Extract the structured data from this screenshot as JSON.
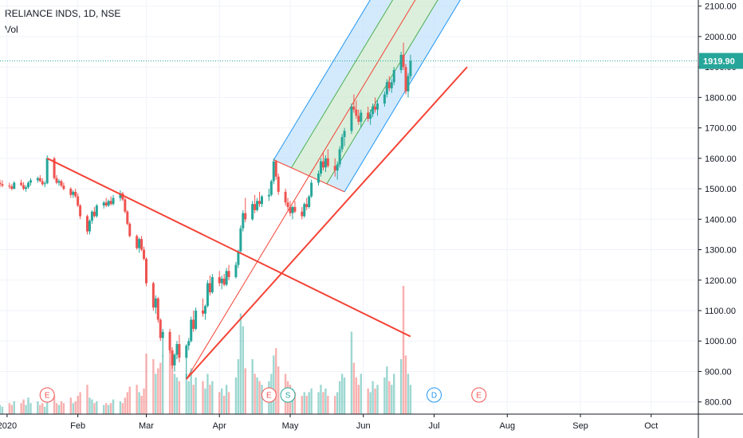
{
  "header": {
    "title": "RELIANCE INDS, 1D, NSE",
    "volume_label": "Vol"
  },
  "colors": {
    "up": "#26a69a",
    "down": "#ef5350",
    "trendline": "#f44336",
    "channel_fill_blue": "#bbdefb",
    "channel_fill_green": "#c8e6c9",
    "channel_border_blue": "#2196f3",
    "channel_border_green": "#4caf50",
    "last_price_bg": "#26a69a",
    "grid": "#f0f3fa"
  },
  "chart_data": {
    "type": "candlestick",
    "title": "RELIANCE INDS, 1D, NSE",
    "xlabel": "",
    "ylabel": "",
    "ylim": [
      760,
      2120
    ],
    "y_ticks": [
      "800.00",
      "900.00",
      "1000.00",
      "1100.00",
      "1200.00",
      "1300.00",
      "1400.00",
      "1500.00",
      "1600.00",
      "1700.00",
      "1800.00",
      "1900.00",
      "2000.00",
      "2100.00"
    ],
    "x_ticks": [
      "2020",
      "Feb",
      "Mar",
      "Apr",
      "May",
      "Jun",
      "Jul",
      "Aug",
      "Sep",
      "Oct"
    ],
    "x_tick_days": [
      0,
      30,
      59,
      90,
      120,
      151,
      181,
      212,
      243,
      273
    ],
    "x_range_days": [
      -3,
      293
    ],
    "last_price": "1919.90",
    "last_price_value": 1919.9,
    "candles": [
      [
        -3,
        1520,
        1530,
        1505,
        1515
      ],
      [
        -2,
        1515,
        1528,
        1505,
        1510
      ],
      [
        1,
        1510,
        1520,
        1500,
        1508
      ],
      [
        2,
        1508,
        1515,
        1495,
        1500
      ],
      [
        3,
        1500,
        1525,
        1498,
        1520
      ],
      [
        6,
        1520,
        1530,
        1508,
        1512
      ],
      [
        7,
        1512,
        1522,
        1495,
        1500
      ],
      [
        8,
        1500,
        1512,
        1490,
        1505
      ],
      [
        9,
        1505,
        1525,
        1500,
        1520
      ],
      [
        10,
        1520,
        1535,
        1510,
        1528
      ],
      [
        13,
        1528,
        1540,
        1520,
        1535
      ],
      [
        14,
        1535,
        1545,
        1522,
        1525
      ],
      [
        15,
        1525,
        1535,
        1510,
        1515
      ],
      [
        16,
        1515,
        1525,
        1505,
        1518
      ],
      [
        17,
        1518,
        1610,
        1515,
        1600
      ],
      [
        20,
        1600,
        1605,
        1530,
        1535
      ],
      [
        21,
        1535,
        1545,
        1515,
        1520
      ],
      [
        22,
        1520,
        1532,
        1510,
        1525
      ],
      [
        23,
        1525,
        1530,
        1505,
        1510
      ],
      [
        24,
        1510,
        1520,
        1495,
        1500
      ],
      [
        27,
        1500,
        1505,
        1470,
        1480
      ],
      [
        28,
        1480,
        1495,
        1470,
        1490
      ],
      [
        29,
        1490,
        1500,
        1470,
        1475
      ],
      [
        30,
        1475,
        1485,
        1440,
        1445
      ],
      [
        31,
        1445,
        1450,
        1400,
        1410
      ],
      [
        34,
        1410,
        1415,
        1350,
        1360
      ],
      [
        35,
        1360,
        1400,
        1350,
        1395
      ],
      [
        36,
        1395,
        1430,
        1385,
        1425
      ],
      [
        37,
        1425,
        1440,
        1405,
        1410
      ],
      [
        38,
        1410,
        1450,
        1405,
        1445
      ],
      [
        41,
        1445,
        1460,
        1435,
        1455
      ],
      [
        42,
        1455,
        1470,
        1440,
        1445
      ],
      [
        43,
        1445,
        1465,
        1440,
        1460
      ],
      [
        44,
        1460,
        1475,
        1445,
        1450
      ],
      [
        45,
        1450,
        1480,
        1445,
        1470
      ],
      [
        48,
        1470,
        1495,
        1460,
        1485
      ],
      [
        49,
        1485,
        1490,
        1460,
        1465
      ],
      [
        50,
        1465,
        1470,
        1420,
        1425
      ],
      [
        51,
        1425,
        1430,
        1380,
        1385
      ],
      [
        52,
        1385,
        1390,
        1340,
        1345
      ],
      [
        55,
        1345,
        1350,
        1300,
        1305
      ],
      [
        56,
        1305,
        1340,
        1290,
        1335
      ],
      [
        57,
        1335,
        1345,
        1295,
        1300
      ],
      [
        58,
        1300,
        1310,
        1265,
        1270
      ],
      [
        59,
        1270,
        1275,
        1180,
        1190
      ],
      [
        62,
        1190,
        1195,
        1100,
        1110
      ],
      [
        63,
        1110,
        1150,
        1090,
        1140
      ],
      [
        64,
        1140,
        1145,
        1060,
        1070
      ],
      [
        65,
        1070,
        1075,
        1000,
        1010
      ],
      [
        66,
        1010,
        1040,
        950,
        1030
      ],
      [
        69,
        1030,
        1040,
        960,
        970
      ],
      [
        70,
        970,
        980,
        910,
        920
      ],
      [
        71,
        920,
        960,
        900,
        955
      ],
      [
        72,
        955,
        1000,
        940,
        990
      ],
      [
        73,
        990,
        1020,
        930,
        945
      ],
      [
        76,
        945,
        990,
        875,
        985
      ],
      [
        77,
        985,
        1010,
        970,
        1000
      ],
      [
        78,
        1000,
        1080,
        995,
        1070
      ],
      [
        79,
        1070,
        1100,
        1030,
        1040
      ],
      [
        80,
        1040,
        1110,
        1035,
        1100
      ],
      [
        83,
        1100,
        1140,
        1080,
        1090
      ],
      [
        84,
        1090,
        1120,
        1070,
        1115
      ],
      [
        85,
        1115,
        1200,
        1110,
        1190
      ],
      [
        86,
        1190,
        1215,
        1150,
        1160
      ],
      [
        87,
        1160,
        1220,
        1155,
        1210
      ],
      [
        90,
        1210,
        1230,
        1180,
        1190
      ],
      [
        91,
        1190,
        1215,
        1170,
        1205
      ],
      [
        92,
        1205,
        1220,
        1180,
        1185
      ],
      [
        93,
        1185,
        1240,
        1180,
        1230
      ],
      [
        94,
        1230,
        1250,
        1200,
        1210
      ],
      [
        97,
        1210,
        1260,
        1205,
        1250
      ],
      [
        98,
        1250,
        1300,
        1240,
        1295
      ],
      [
        99,
        1295,
        1380,
        1290,
        1370
      ],
      [
        100,
        1370,
        1430,
        1360,
        1420
      ],
      [
        101,
        1420,
        1470,
        1390,
        1400
      ],
      [
        104,
        1400,
        1460,
        1395,
        1450
      ],
      [
        105,
        1450,
        1480,
        1420,
        1430
      ],
      [
        106,
        1430,
        1470,
        1425,
        1460
      ],
      [
        107,
        1460,
        1490,
        1440,
        1450
      ],
      [
        108,
        1450,
        1480,
        1440,
        1475
      ],
      [
        111,
        1475,
        1500,
        1460,
        1480
      ],
      [
        112,
        1480,
        1530,
        1475,
        1525
      ],
      [
        113,
        1525,
        1600,
        1515,
        1590
      ],
      [
        114,
        1590,
        1595,
        1530,
        1540
      ],
      [
        115,
        1540,
        1550,
        1480,
        1490
      ],
      [
        118,
        1490,
        1500,
        1445,
        1455
      ],
      [
        119,
        1455,
        1470,
        1430,
        1440
      ],
      [
        120,
        1440,
        1460,
        1410,
        1420
      ],
      [
        121,
        1420,
        1445,
        1400,
        1440
      ],
      [
        122,
        1440,
        1460,
        1420,
        1425
      ],
      [
        125,
        1425,
        1440,
        1400,
        1410
      ],
      [
        126,
        1410,
        1455,
        1405,
        1450
      ],
      [
        127,
        1450,
        1470,
        1430,
        1440
      ],
      [
        128,
        1440,
        1480,
        1435,
        1475
      ],
      [
        129,
        1475,
        1530,
        1470,
        1520
      ],
      [
        132,
        1520,
        1560,
        1510,
        1550
      ],
      [
        133,
        1550,
        1600,
        1540,
        1590
      ],
      [
        134,
        1590,
        1620,
        1560,
        1570
      ],
      [
        135,
        1570,
        1610,
        1555,
        1600
      ],
      [
        136,
        1600,
        1630,
        1570,
        1575
      ],
      [
        139,
        1575,
        1600,
        1540,
        1560
      ],
      [
        140,
        1560,
        1590,
        1530,
        1580
      ],
      [
        141,
        1580,
        1640,
        1570,
        1630
      ],
      [
        142,
        1630,
        1680,
        1620,
        1670
      ],
      [
        143,
        1670,
        1700,
        1640,
        1690
      ],
      [
        146,
        1690,
        1780,
        1680,
        1770
      ],
      [
        147,
        1770,
        1810,
        1750,
        1760
      ],
      [
        148,
        1760,
        1790,
        1730,
        1740
      ],
      [
        149,
        1740,
        1760,
        1710,
        1720
      ],
      [
        150,
        1720,
        1760,
        1700,
        1750
      ],
      [
        153,
        1750,
        1770,
        1720,
        1730
      ],
      [
        154,
        1730,
        1760,
        1710,
        1745
      ],
      [
        155,
        1745,
        1780,
        1735,
        1770
      ],
      [
        156,
        1770,
        1800,
        1750,
        1760
      ],
      [
        157,
        1760,
        1790,
        1740,
        1780
      ],
      [
        160,
        1780,
        1820,
        1770,
        1810
      ],
      [
        161,
        1810,
        1860,
        1800,
        1850
      ],
      [
        162,
        1850,
        1870,
        1820,
        1830
      ],
      [
        163,
        1830,
        1860,
        1815,
        1850
      ],
      [
        164,
        1850,
        1900,
        1840,
        1890
      ],
      [
        167,
        1890,
        1950,
        1880,
        1940
      ],
      [
        168,
        1940,
        1980,
        1890,
        1900
      ],
      [
        169,
        1900,
        1910,
        1810,
        1820
      ],
      [
        170,
        1820,
        1880,
        1800,
        1870
      ],
      [
        171,
        1870,
        1940,
        1860,
        1920
      ]
    ],
    "volumes": [
      [
        -3,
        0.05,
        1
      ],
      [
        -2,
        0.04,
        1
      ],
      [
        1,
        0.06,
        0
      ],
      [
        2,
        0.05,
        0
      ],
      [
        3,
        0.07,
        1
      ],
      [
        6,
        0.06,
        0
      ],
      [
        7,
        0.08,
        0
      ],
      [
        8,
        0.05,
        1
      ],
      [
        9,
        0.09,
        1
      ],
      [
        10,
        0.06,
        1
      ],
      [
        13,
        0.07,
        1
      ],
      [
        14,
        0.05,
        0
      ],
      [
        15,
        0.06,
        0
      ],
      [
        16,
        0.04,
        1
      ],
      [
        17,
        0.14,
        1
      ],
      [
        20,
        0.1,
        0
      ],
      [
        21,
        0.06,
        0
      ],
      [
        22,
        0.05,
        1
      ],
      [
        23,
        0.07,
        0
      ],
      [
        24,
        0.06,
        0
      ],
      [
        27,
        0.09,
        0
      ],
      [
        28,
        0.06,
        1
      ],
      [
        29,
        0.07,
        0
      ],
      [
        30,
        0.1,
        0
      ],
      [
        31,
        0.12,
        0
      ],
      [
        34,
        0.16,
        0
      ],
      [
        35,
        0.09,
        1
      ],
      [
        36,
        0.08,
        1
      ],
      [
        37,
        0.06,
        0
      ],
      [
        38,
        0.07,
        1
      ],
      [
        41,
        0.05,
        1
      ],
      [
        42,
        0.06,
        0
      ],
      [
        43,
        0.05,
        1
      ],
      [
        44,
        0.06,
        0
      ],
      [
        45,
        0.08,
        1
      ],
      [
        48,
        0.07,
        1
      ],
      [
        49,
        0.06,
        0
      ],
      [
        50,
        0.09,
        0
      ],
      [
        51,
        0.12,
        0
      ],
      [
        52,
        0.15,
        0
      ],
      [
        55,
        0.16,
        0
      ],
      [
        56,
        0.12,
        1
      ],
      [
        57,
        0.1,
        0
      ],
      [
        58,
        0.14,
        0
      ],
      [
        59,
        0.33,
        0
      ],
      [
        62,
        0.3,
        0
      ],
      [
        63,
        0.22,
        1
      ],
      [
        64,
        0.25,
        0
      ],
      [
        65,
        0.28,
        0
      ],
      [
        66,
        0.32,
        1
      ],
      [
        69,
        0.35,
        0
      ],
      [
        70,
        0.27,
        0
      ],
      [
        71,
        0.22,
        1
      ],
      [
        72,
        0.2,
        1
      ],
      [
        73,
        0.18,
        0
      ],
      [
        76,
        0.22,
        1
      ],
      [
        77,
        0.18,
        1
      ],
      [
        78,
        0.25,
        1
      ],
      [
        79,
        0.16,
        0
      ],
      [
        80,
        0.2,
        1
      ],
      [
        83,
        0.18,
        0
      ],
      [
        84,
        0.14,
        1
      ],
      [
        85,
        0.22,
        1
      ],
      [
        86,
        0.16,
        0
      ],
      [
        87,
        0.18,
        1
      ],
      [
        90,
        0.12,
        0
      ],
      [
        91,
        0.14,
        1
      ],
      [
        92,
        0.1,
        0
      ],
      [
        93,
        0.16,
        1
      ],
      [
        94,
        0.12,
        0
      ],
      [
        97,
        0.2,
        1
      ],
      [
        98,
        0.3,
        1
      ],
      [
        99,
        0.55,
        1
      ],
      [
        100,
        0.48,
        1
      ],
      [
        101,
        0.25,
        0
      ],
      [
        104,
        0.3,
        1
      ],
      [
        105,
        0.22,
        0
      ],
      [
        106,
        0.2,
        1
      ],
      [
        107,
        0.18,
        0
      ],
      [
        108,
        0.16,
        1
      ],
      [
        111,
        0.18,
        1
      ],
      [
        112,
        0.22,
        1
      ],
      [
        113,
        0.32,
        1
      ],
      [
        114,
        0.36,
        0
      ],
      [
        115,
        0.26,
        0
      ],
      [
        118,
        0.22,
        0
      ],
      [
        119,
        0.18,
        0
      ],
      [
        120,
        0.16,
        0
      ],
      [
        121,
        0.14,
        1
      ],
      [
        122,
        0.12,
        0
      ],
      [
        125,
        0.1,
        0
      ],
      [
        126,
        0.12,
        1
      ],
      [
        127,
        0.1,
        0
      ],
      [
        128,
        0.12,
        1
      ],
      [
        129,
        0.14,
        1
      ],
      [
        132,
        0.12,
        1
      ],
      [
        133,
        0.16,
        1
      ],
      [
        134,
        0.12,
        0
      ],
      [
        135,
        0.14,
        1
      ],
      [
        136,
        0.1,
        0
      ],
      [
        139,
        0.1,
        0
      ],
      [
        140,
        0.12,
        1
      ],
      [
        141,
        0.18,
        1
      ],
      [
        142,
        0.22,
        1
      ],
      [
        143,
        0.2,
        1
      ],
      [
        146,
        0.45,
        1
      ],
      [
        147,
        0.28,
        0
      ],
      [
        148,
        0.2,
        0
      ],
      [
        149,
        0.16,
        0
      ],
      [
        150,
        0.22,
        1
      ],
      [
        153,
        0.14,
        0
      ],
      [
        154,
        0.12,
        1
      ],
      [
        155,
        0.18,
        1
      ],
      [
        156,
        0.14,
        0
      ],
      [
        157,
        0.16,
        1
      ],
      [
        160,
        0.2,
        1
      ],
      [
        161,
        0.26,
        1
      ],
      [
        162,
        0.18,
        0
      ],
      [
        163,
        0.16,
        1
      ],
      [
        164,
        0.22,
        1
      ],
      [
        167,
        0.3,
        1
      ],
      [
        168,
        0.7,
        0
      ],
      [
        169,
        0.32,
        0
      ],
      [
        170,
        0.22,
        1
      ],
      [
        171,
        0.16,
        1
      ]
    ],
    "trendlines": [
      {
        "from": [
          17,
          1600
        ],
        "to": [
          171,
          1015
        ]
      },
      {
        "from": [
          76,
          875
        ],
        "to": [
          195,
          1900
        ]
      }
    ],
    "pitchfork": {
      "a": [
        76,
        875
      ],
      "b": [
        113,
        1595
      ],
      "c": [
        143,
        1490
      ]
    },
    "events": [
      {
        "day": 17,
        "label": "E",
        "color": "#ef5350"
      },
      {
        "day": 111,
        "label": "E",
        "color": "#ef5350"
      },
      {
        "day": 119,
        "label": "S",
        "color": "#26a69a"
      },
      {
        "day": 181,
        "label": "D",
        "color": "#2196f3"
      },
      {
        "day": 200,
        "label": "E",
        "color": "#ef5350"
      }
    ]
  }
}
